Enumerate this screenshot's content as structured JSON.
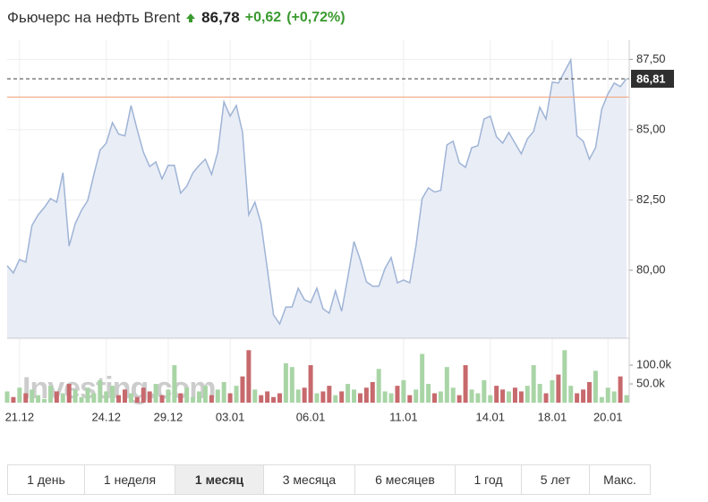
{
  "header": {
    "title": "Фьючерс на нефть Brent",
    "price": "86,78",
    "change": "+0,62",
    "change_percent": "(+0,72%)"
  },
  "chart_data": [
    {
      "type": "area",
      "color": "#9fb4d6",
      "fill": "#e9edf6",
      "grid": true,
      "categories": [
        null,
        null,
        "21.12",
        null,
        null,
        null,
        null,
        null,
        null,
        null,
        null,
        null,
        null,
        null,
        null,
        null,
        "24.12",
        null,
        null,
        null,
        null,
        null,
        null,
        null,
        null,
        null,
        "29.12",
        null,
        null,
        null,
        null,
        null,
        null,
        null,
        null,
        null,
        "03.01",
        null,
        null,
        null,
        null,
        null,
        null,
        null,
        null,
        null,
        null,
        null,
        null,
        "06.01",
        null,
        null,
        null,
        null,
        null,
        null,
        null,
        null,
        null,
        null,
        null,
        null,
        null,
        null,
        "11.01",
        null,
        null,
        null,
        null,
        null,
        null,
        null,
        null,
        null,
        null,
        null,
        null,
        null,
        "14.01",
        null,
        null,
        null,
        null,
        null,
        null,
        null,
        null,
        null,
        "18.01",
        null,
        null,
        null,
        null,
        null,
        null,
        null,
        null,
        "20.01",
        null,
        null,
        null
      ],
      "values": [
        80.16,
        79.9,
        80.38,
        80.29,
        81.59,
        81.97,
        82.23,
        82.55,
        82.42,
        83.47,
        80.86,
        81.66,
        82.13,
        82.48,
        83.41,
        84.27,
        84.52,
        85.25,
        84.84,
        84.78,
        85.86,
        85.0,
        84.2,
        83.69,
        83.85,
        83.25,
        83.73,
        83.73,
        82.74,
        82.99,
        83.47,
        83.73,
        83.95,
        83.41,
        84.2,
        85.99,
        85.48,
        85.86,
        84.9,
        81.97,
        82.42,
        81.66,
        80.06,
        78.41,
        78.09,
        78.69,
        78.69,
        79.36,
        78.95,
        78.85,
        79.36,
        78.63,
        78.47,
        79.27,
        78.54,
        79.75,
        81.02,
        80.38,
        79.59,
        79.43,
        79.43,
        80.06,
        80.45,
        79.55,
        79.65,
        79.55,
        80.86,
        82.55,
        82.93,
        82.78,
        82.84,
        84.46,
        84.59,
        83.82,
        83.66,
        84.36,
        84.43,
        85.38,
        85.48,
        84.75,
        84.52,
        84.9,
        84.52,
        84.14,
        84.68,
        84.94,
        85.8,
        85.38,
        86.69,
        86.66,
        87.07,
        87.48,
        84.78,
        84.59,
        83.95,
        84.36,
        85.73,
        86.27,
        86.66,
        86.53,
        86.82
      ],
      "ylim": [
        77.58,
        88.18
      ],
      "yticks": [
        {
          "value": 80,
          "label": "80,00"
        },
        {
          "value": 82.5,
          "label": "82,50"
        },
        {
          "value": 85,
          "label": "85,00"
        },
        {
          "value": 87.5,
          "label": "87,50"
        }
      ],
      "reference_line": 86.16,
      "reference_color": "#f0a27a",
      "last_price": {
        "value": 86.81,
        "label": "86,81"
      }
    },
    {
      "type": "volume",
      "up_color": "#a9d5a6",
      "down_color": "#c7696d",
      "watermark": "Investing.com",
      "values": [
        30000,
        15000,
        40000,
        25000,
        35000,
        20000,
        10000,
        45000,
        30000,
        25000,
        50000,
        35000,
        15000,
        40000,
        25000,
        60000,
        30000,
        45000,
        20000,
        35000,
        25000,
        15000,
        40000,
        30000,
        50000,
        20000,
        35000,
        100000,
        25000,
        40000,
        15000,
        30000,
        45000,
        20000,
        35000,
        55000,
        25000,
        45000,
        70000,
        140000,
        35000,
        20000,
        30000,
        15000,
        25000,
        105000,
        95000,
        35000,
        40000,
        100000,
        25000,
        30000,
        45000,
        20000,
        30000,
        50000,
        35000,
        25000,
        40000,
        55000,
        90000,
        30000,
        25000,
        45000,
        60000,
        20000,
        35000,
        130000,
        50000,
        25000,
        30000,
        95000,
        40000,
        20000,
        100000,
        35000,
        25000,
        60000,
        20000,
        45000,
        35000,
        30000,
        40000,
        30000,
        45000,
        100000,
        50000,
        25000,
        60000,
        75000,
        140000,
        45000,
        25000,
        35000,
        55000,
        85000,
        15000,
        40000,
        30000,
        70000,
        20000
      ],
      "ylim": [
        0,
        167000
      ],
      "yticks": [
        {
          "value": 50000,
          "label": "50.0k"
        },
        {
          "value": 100000,
          "label": "100.0k"
        }
      ]
    }
  ],
  "range_buttons": {
    "labels": [
      "1 день",
      "1 неделя",
      "1 месяц",
      "3 месяца",
      "6 месяцев",
      "1 год",
      "5 лет",
      "Макс."
    ],
    "active": 2
  }
}
